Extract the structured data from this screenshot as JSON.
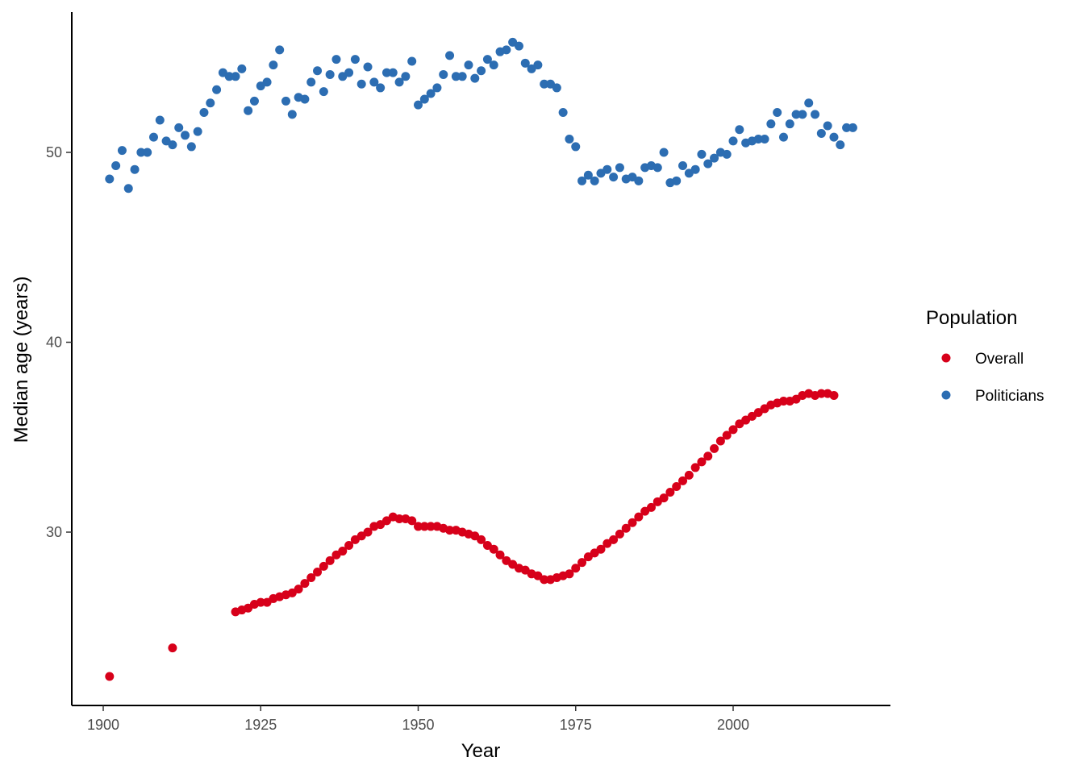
{
  "chart_data": {
    "type": "scatter",
    "xlabel": "Year",
    "ylabel": "Median age (years)",
    "xlim": [
      1897.5,
      2220.5
    ],
    "ylim": [
      21.0,
      57.5
    ],
    "x_ticks": [
      1900,
      1925,
      1950,
      1975,
      2000
    ],
    "x_tick_labels": [
      "1900",
      "1925",
      "1950",
      "1975",
      "2000"
    ],
    "y_ticks": [
      30,
      40,
      50
    ],
    "y_tick_labels": [
      "30",
      "40",
      "50"
    ],
    "grid": false,
    "legend": {
      "title": "Population",
      "position": "right"
    },
    "series": [
      {
        "name": "Overall",
        "color": "#d7001a",
        "x": [
          1901,
          1911,
          1921,
          1922,
          1923,
          1924,
          1925,
          1926,
          1927,
          1928,
          1929,
          1930,
          1931,
          1932,
          1933,
          1934,
          1935,
          1936,
          1937,
          1938,
          1939,
          1940,
          1941,
          1942,
          1943,
          1944,
          1945,
          1946,
          1947,
          1948,
          1949,
          1950,
          1951,
          1952,
          1953,
          1954,
          1955,
          1956,
          1957,
          1958,
          1959,
          1960,
          1961,
          1962,
          1963,
          1964,
          1965,
          1966,
          1967,
          1968,
          1969,
          1970,
          1971,
          1972,
          1973,
          1974,
          1975,
          1976,
          1977,
          1978,
          1979,
          1980,
          1981,
          1982,
          1983,
          1984,
          1985,
          1986,
          1987,
          1988,
          1989,
          1990,
          1991,
          1992,
          1993,
          1994,
          1995,
          1996,
          1997,
          1998,
          1999,
          2000,
          2001,
          2002,
          2003,
          2004,
          2005,
          2006,
          2007,
          2008,
          2009,
          2010,
          2011,
          2012,
          2013,
          2014,
          2015,
          2016
        ],
        "y": [
          22.4,
          23.9,
          25.8,
          25.9,
          26.0,
          26.2,
          26.3,
          26.3,
          26.5,
          26.6,
          26.7,
          26.8,
          27.0,
          27.3,
          27.6,
          27.9,
          28.2,
          28.5,
          28.8,
          29.0,
          29.3,
          29.6,
          29.8,
          30.0,
          30.3,
          30.4,
          30.6,
          30.8,
          30.7,
          30.7,
          30.6,
          30.3,
          30.3,
          30.3,
          30.3,
          30.2,
          30.1,
          30.1,
          30.0,
          29.9,
          29.8,
          29.6,
          29.3,
          29.1,
          28.8,
          28.5,
          28.3,
          28.1,
          28.0,
          27.8,
          27.7,
          27.5,
          27.5,
          27.6,
          27.7,
          27.8,
          28.1,
          28.4,
          28.7,
          28.9,
          29.1,
          29.4,
          29.6,
          29.9,
          30.2,
          30.5,
          30.8,
          31.1,
          31.3,
          31.6,
          31.8,
          32.1,
          32.4,
          32.7,
          33.0,
          33.4,
          33.7,
          34.0,
          34.4,
          34.8,
          35.1,
          35.4,
          35.7,
          35.9,
          36.1,
          36.3,
          36.5,
          36.7,
          36.8,
          36.9,
          36.9,
          37.0,
          37.2,
          37.3,
          37.2,
          37.3,
          37.3,
          37.2
        ]
      },
      {
        "name": "Politicians",
        "color": "#2c6db2",
        "x": [
          1901,
          1902,
          1903,
          1904,
          1905,
          1906,
          1907,
          1908,
          1909,
          1910,
          1911,
          1912,
          1913,
          1914,
          1915,
          1916,
          1917,
          1918,
          1919,
          1920,
          1921,
          1922,
          1923,
          1924,
          1925,
          1926,
          1927,
          1928,
          1929,
          1930,
          1931,
          1932,
          1933,
          1934,
          1935,
          1936,
          1937,
          1938,
          1939,
          1940,
          1941,
          1942,
          1943,
          1944,
          1945,
          1946,
          1947,
          1948,
          1949,
          1950,
          1951,
          1952,
          1953,
          1954,
          1955,
          1956,
          1957,
          1958,
          1959,
          1960,
          1961,
          1962,
          1963,
          1964,
          1965,
          1966,
          1967,
          1968,
          1969,
          1970,
          1971,
          1972,
          1973,
          1974,
          1975,
          1976,
          1977,
          1978,
          1979,
          1980,
          1981,
          1982,
          1983,
          1984,
          1985,
          1986,
          1987,
          1988,
          1989,
          1990,
          1991,
          1992,
          1993,
          1994,
          1995,
          1996,
          1997,
          1998,
          1999,
          2000,
          2001,
          2002,
          2003,
          2004,
          2005,
          2006,
          2007,
          2008,
          2009,
          2010,
          2011,
          2012,
          2013,
          2014,
          2015,
          2016,
          2017,
          2018,
          2019
        ],
        "y": [
          48.6,
          49.3,
          50.1,
          48.1,
          49.1,
          50.0,
          50.0,
          50.8,
          51.7,
          50.6,
          50.4,
          51.3,
          50.9,
          50.3,
          51.1,
          52.1,
          52.6,
          53.3,
          54.2,
          54.0,
          54.0,
          54.4,
          52.2,
          52.7,
          53.5,
          53.7,
          54.6,
          55.4,
          52.7,
          52.0,
          52.9,
          52.8,
          53.7,
          54.3,
          53.2,
          54.1,
          54.9,
          54.0,
          54.2,
          54.9,
          53.6,
          54.5,
          53.7,
          53.4,
          54.2,
          54.2,
          53.7,
          54.0,
          54.8,
          52.5,
          52.8,
          53.1,
          53.4,
          54.1,
          55.1,
          54.0,
          54.0,
          54.6,
          53.9,
          54.3,
          54.9,
          54.6,
          55.3,
          55.4,
          55.8,
          55.6,
          54.7,
          54.4,
          54.6,
          53.6,
          53.6,
          53.4,
          52.1,
          50.7,
          50.3,
          48.5,
          48.8,
          48.5,
          48.9,
          49.1,
          48.7,
          49.2,
          48.6,
          48.7,
          48.5,
          49.2,
          49.3,
          49.2,
          50.0,
          48.4,
          48.5,
          49.3,
          48.9,
          49.1,
          49.9,
          49.4,
          49.7,
          50.0,
          49.9,
          50.6,
          51.2,
          50.5,
          50.6,
          50.7,
          50.7,
          51.5,
          52.1,
          50.8,
          51.5,
          52.0,
          52.0,
          52.6,
          52.0,
          51.0,
          51.4,
          50.8,
          50.4,
          51.3,
          51.3
        ]
      }
    ]
  },
  "legend": {
    "title": "Population",
    "items": [
      {
        "label": "Overall",
        "color": "#d7001a"
      },
      {
        "label": "Politicians",
        "color": "#2c6db2"
      }
    ]
  },
  "axes": {
    "x_title": "Year",
    "y_title": "Median age (years)"
  }
}
